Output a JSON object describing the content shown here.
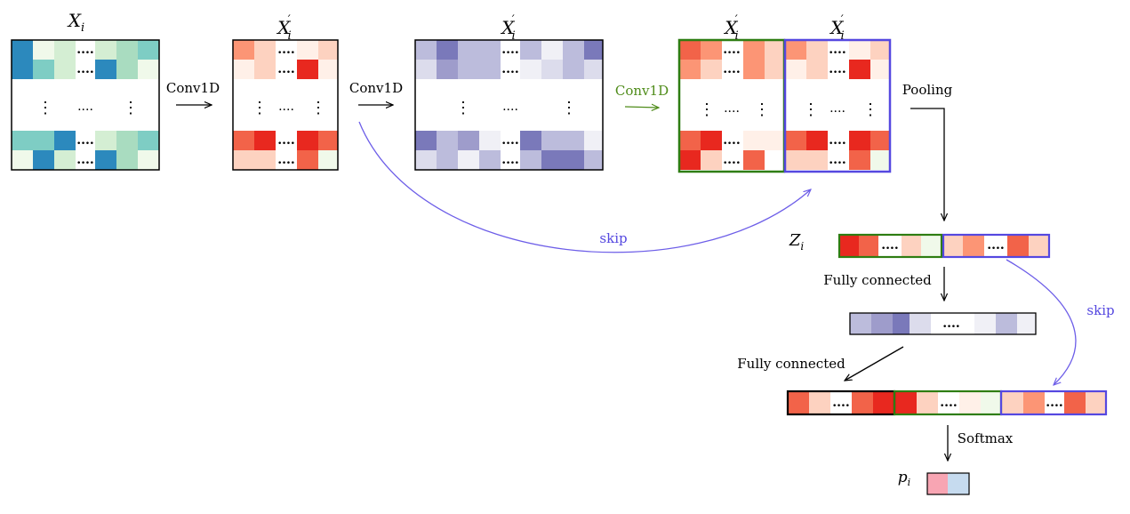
{
  "colors": {
    "teal_dark": "#2c89bd",
    "teal": "#7ecdc4",
    "teal_mid": "#a9dcc0",
    "teal_light": "#d4eed3",
    "teal_pale": "#f0f9ea",
    "red_dark": "#e8281f",
    "red": "#f26349",
    "red_mid": "#fc9575",
    "red_light": "#fdd2c0",
    "red_pale": "#fff0e8",
    "purple_dark": "#7a79ba",
    "purple": "#9e9ccb",
    "purple_mid": "#bcbcdc",
    "purple_light": "#dcdcec",
    "purple_pale": "#f0f0f6",
    "pink": "#f8a5b3",
    "light_blue": "#c6dbef",
    "green_frame": "#2e7d12",
    "blue_frame": "#5548e0",
    "skip_line": "#6d5ee8",
    "green_text": "#4f8c1a",
    "black": "#000000"
  },
  "labels": {
    "x_input": "X",
    "x_input_sub": "i",
    "x_prime_1": "X",
    "x_prime_1_sub": "i",
    "x_prime_2": "X",
    "x_prime_2_sub": "i",
    "x_prime_3": "X",
    "x_prime_3_sub": "i",
    "x_prime_4": "X",
    "x_prime_4_sub": "i",
    "conv1": "Conv1D",
    "conv2": "Conv1D",
    "conv3": "Conv1D",
    "pooling": "Pooling",
    "skip_1": "skip",
    "skip_2": "skip",
    "z": "Z",
    "z_sub": "i",
    "fc_1": "Fully connected",
    "fc_2": "Fully connected",
    "softmax": "Softmax",
    "p": "p",
    "p_sub": "i",
    "dots_h": "....",
    "dots_v": "⋮"
  }
}
